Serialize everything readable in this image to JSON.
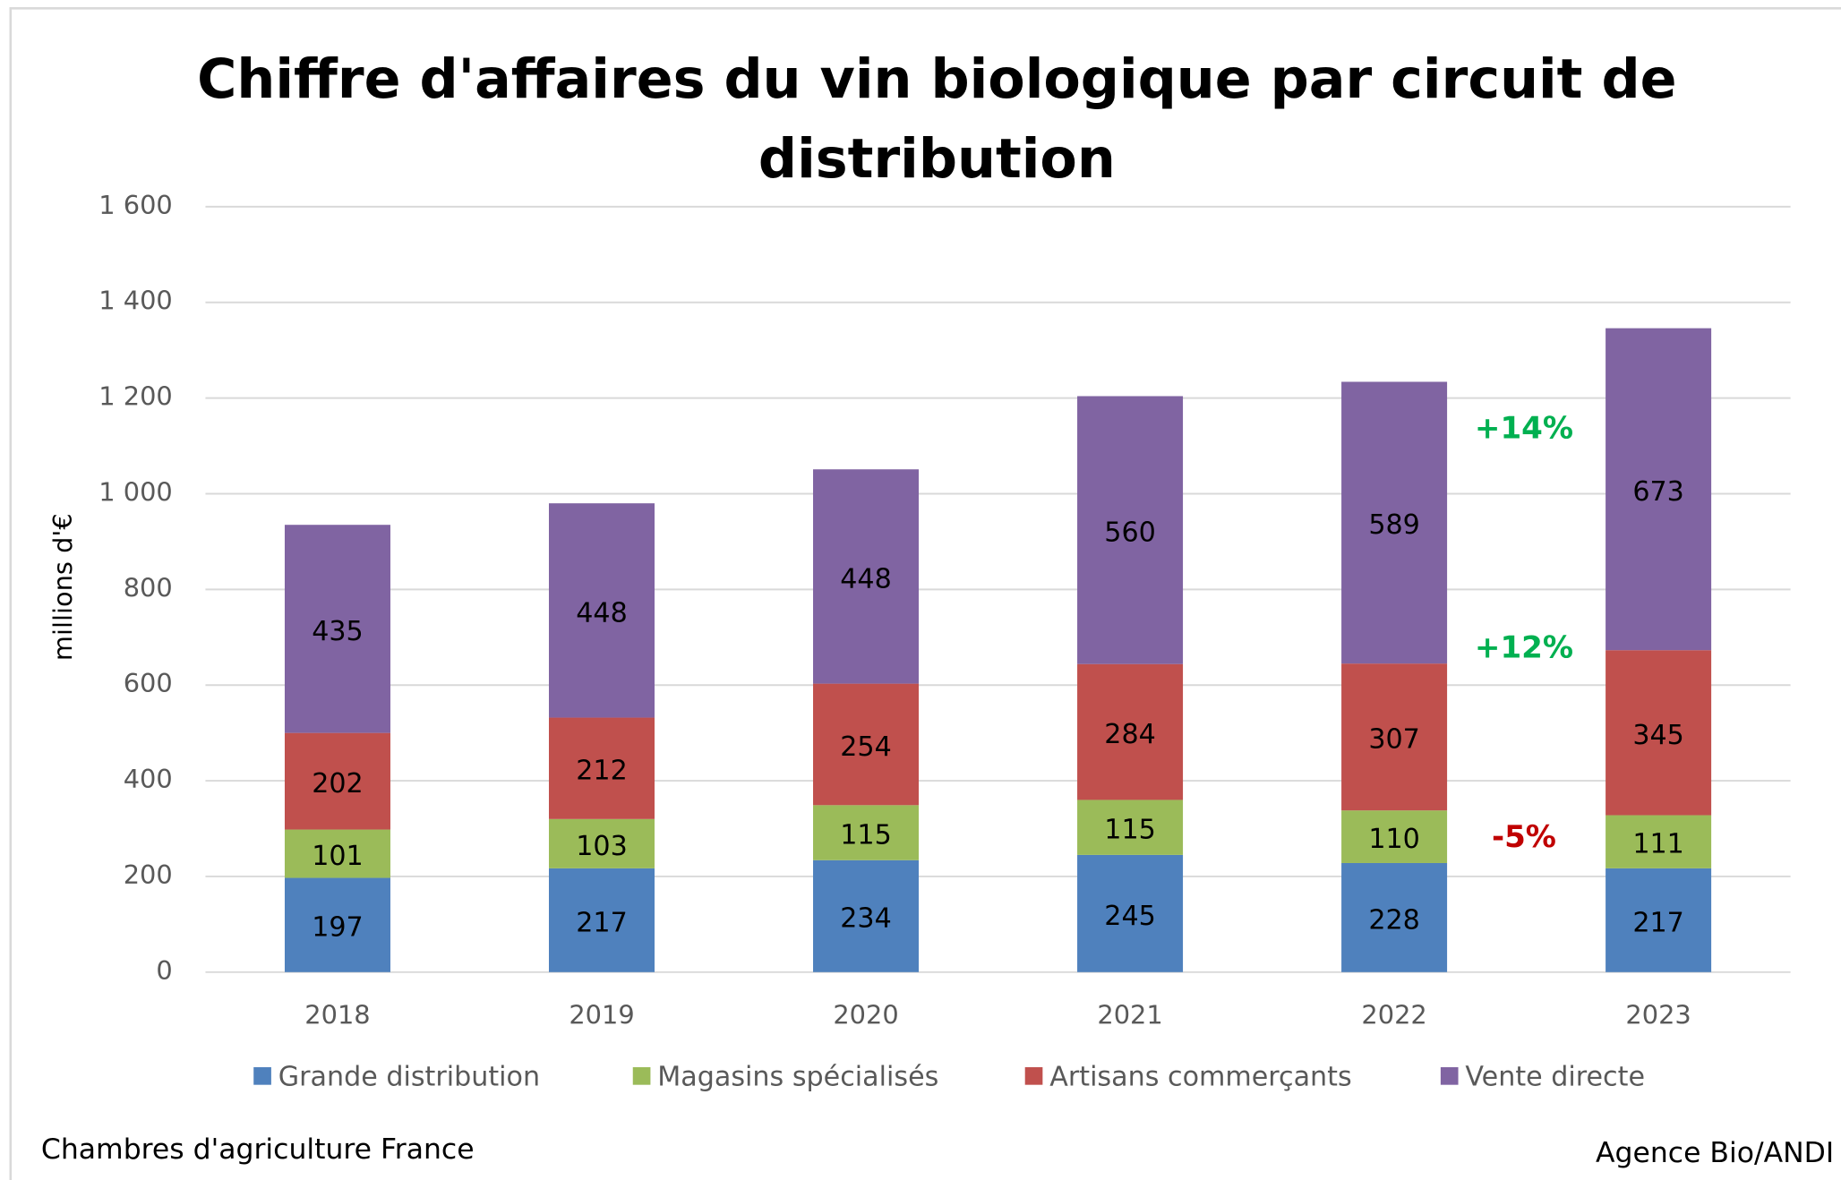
{
  "chart_data": {
    "type": "stacked_bar",
    "title": "Chiffre d'affaires du vin biologique par circuit de distribution",
    "ylabel": "millions d'€",
    "categories": [
      "2018",
      "2019",
      "2020",
      "2021",
      "2022",
      "2023"
    ],
    "series": [
      {
        "name": "Grande distribution",
        "color": "#4f81bd",
        "values": [
          197,
          217,
          234,
          245,
          228,
          217
        ]
      },
      {
        "name": "Magasins spécialisés",
        "color": "#9bbb59",
        "values": [
          101,
          103,
          115,
          115,
          110,
          111
        ]
      },
      {
        "name": "Artisans commerçants",
        "color": "#c0504d",
        "values": [
          202,
          212,
          254,
          284,
          307,
          345
        ]
      },
      {
        "name": "Vente directe",
        "color": "#8064a2",
        "values": [
          435,
          448,
          448,
          560,
          589,
          673
        ]
      }
    ],
    "ylim": [
      0,
      1600
    ],
    "yticks": [
      0,
      200,
      400,
      600,
      800,
      {
        "value": 1000,
        "label": "1 000"
      },
      {
        "value": 1200,
        "label": "1 200"
      },
      {
        "value": 1400,
        "label": "1 400"
      },
      {
        "value": 1600,
        "label": "1 600"
      }
    ],
    "grid": true,
    "legend": "bottom",
    "annotations": [
      {
        "text": "+14%",
        "color": "#00b050"
      },
      {
        "text": "+12%",
        "color": "#00b050"
      },
      {
        "text": "-5%",
        "color": "#c00000"
      }
    ],
    "source_left": "Chambres d'agriculture France",
    "source_right": "Agence Bio/ANDI"
  }
}
